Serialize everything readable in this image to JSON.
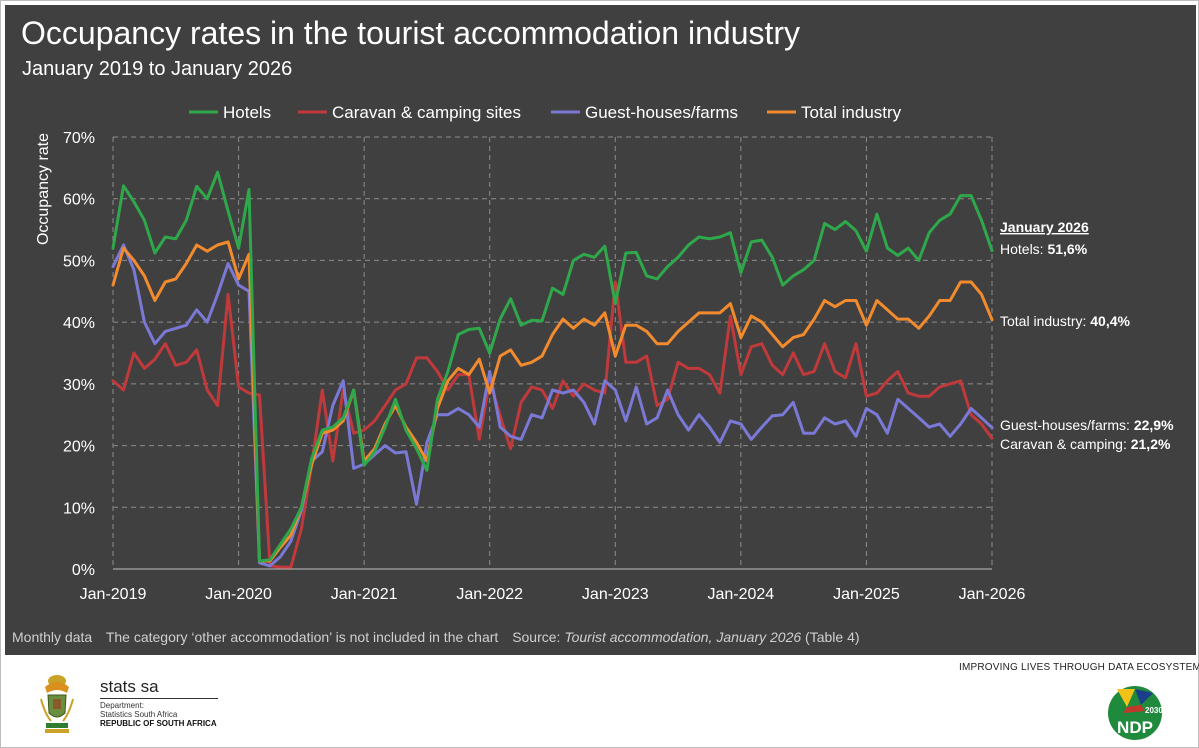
{
  "header": {
    "title": "Occupancy rates in the tourist accommodation industry",
    "subtitle": "January 2019 to January 2026"
  },
  "colors": {
    "background": "#404040",
    "grid": "#8c8c8c",
    "hotels": "#2ea84a",
    "caravan": "#c0393b",
    "guest": "#7b79d6",
    "total": "#f28a2e"
  },
  "chart_data": {
    "type": "line",
    "ylabel": "Occupancy rate",
    "ylim": [
      0,
      70
    ],
    "yticks": [
      "0%",
      "10%",
      "20%",
      "30%",
      "40%",
      "50%",
      "60%",
      "70%"
    ],
    "xtick_labels": [
      "Jan-2019",
      "Jan-2020",
      "Jan-2021",
      "Jan-2022",
      "Jan-2023",
      "Jan-2024",
      "Jan-2025",
      "Jan-2026"
    ],
    "months": 85,
    "legend": [
      "Hotels",
      "Caravan & camping sites",
      "Guest-houses/farms",
      "Total industry"
    ],
    "series": [
      {
        "name": "Hotels",
        "color": "#2ea84a",
        "values": [
          52.0,
          62.1,
          59.5,
          56.5,
          51.2,
          53.8,
          53.5,
          56.5,
          62.0,
          60.0,
          64.3,
          58.0,
          52.0,
          61.5,
          1.3,
          1.5,
          4.0,
          6.5,
          10.0,
          18.0,
          22.5,
          23.0,
          24.5,
          29.0,
          16.8,
          19.0,
          23.0,
          27.5,
          22.5,
          19.5,
          16.0,
          27.5,
          32.0,
          38.0,
          38.8,
          39.0,
          35.0,
          40.5,
          43.8,
          39.5,
          40.3,
          40.2,
          45.5,
          44.5,
          50.0,
          51.0,
          50.5,
          52.3,
          43.0,
          51.2,
          51.3,
          47.5,
          47.0,
          49.0,
          50.5,
          52.5,
          53.8,
          53.5,
          53.8,
          54.5,
          48.0,
          53.0,
          53.3,
          50.5,
          46.0,
          47.5,
          48.5,
          50.0,
          56.0,
          55.0,
          56.3,
          54.8,
          51.5,
          57.5,
          52.0,
          50.8,
          52.0,
          50.0,
          54.5,
          56.5,
          57.5,
          60.5,
          60.5,
          56.5,
          51.6
        ]
      },
      {
        "name": "Caravan & camping sites",
        "color": "#c0393b",
        "values": [
          30.5,
          29.0,
          35.0,
          32.5,
          34.0,
          36.5,
          33.0,
          33.5,
          35.5,
          29.0,
          26.5,
          44.5,
          29.5,
          28.5,
          28.2,
          0.5,
          0.3,
          0.3,
          6.5,
          17.0,
          29.0,
          17.5,
          29.0,
          22.0,
          22.5,
          24.0,
          26.5,
          29.0,
          30.0,
          34.2,
          34.2,
          32.0,
          29.0,
          31.5,
          31.5,
          21.0,
          30.5,
          24.8,
          19.5,
          27.0,
          29.5,
          29.0,
          26.0,
          30.5,
          28.0,
          30.0,
          29.0,
          28.5,
          46.5,
          33.5,
          33.5,
          34.5,
          26.5,
          27.5,
          33.5,
          32.5,
          32.5,
          31.5,
          28.5,
          41.0,
          31.5,
          36.0,
          36.5,
          33.0,
          31.5,
          35.0,
          31.5,
          32.0,
          36.5,
          32.0,
          31.0,
          36.5,
          28.0,
          28.5,
          30.5,
          32.0,
          28.5,
          28.0,
          28.0,
          29.5,
          30.0,
          30.5,
          25.0,
          23.5,
          21.2
        ]
      },
      {
        "name": "Guest-houses/farms",
        "color": "#7b79d6",
        "values": [
          49.0,
          52.5,
          48.5,
          40.0,
          36.5,
          38.5,
          39.0,
          39.5,
          42.0,
          40.0,
          44.5,
          49.5,
          46.0,
          45.0,
          1.0,
          0.5,
          2.0,
          4.5,
          9.5,
          17.5,
          19.0,
          26.5,
          30.5,
          16.3,
          17.0,
          18.5,
          20.0,
          18.8,
          19.0,
          10.5,
          20.5,
          25.0,
          25.0,
          26.0,
          25.0,
          23.0,
          32.0,
          23.0,
          21.5,
          21.0,
          25.0,
          24.5,
          29.0,
          28.5,
          29.0,
          27.0,
          23.5,
          30.5,
          29.0,
          24.0,
          29.5,
          23.5,
          24.5,
          29.0,
          25.0,
          22.5,
          25.0,
          23.0,
          20.5,
          24.0,
          23.5,
          21.0,
          23.0,
          24.8,
          25.0,
          27.0,
          22.0,
          22.0,
          24.5,
          23.5,
          24.0,
          21.5,
          26.0,
          25.0,
          22.0,
          27.5,
          26.0,
          24.5,
          23.0,
          23.5,
          21.5,
          23.5,
          26.0,
          24.5,
          22.9
        ]
      },
      {
        "name": "Total industry",
        "color": "#f28a2e",
        "values": [
          46.0,
          52.0,
          50.0,
          47.5,
          43.5,
          46.5,
          47.0,
          49.5,
          52.5,
          51.5,
          52.5,
          53.0,
          47.0,
          51.0,
          1.3,
          1.3,
          3.5,
          5.5,
          10.0,
          17.0,
          22.0,
          22.5,
          24.0,
          29.0,
          17.5,
          19.5,
          23.5,
          26.5,
          23.0,
          20.5,
          17.5,
          26.0,
          30.5,
          32.5,
          31.5,
          34.0,
          28.5,
          34.5,
          35.5,
          33.0,
          33.5,
          34.5,
          38.0,
          40.5,
          39.0,
          40.5,
          39.5,
          41.5,
          34.5,
          39.5,
          39.5,
          38.5,
          36.5,
          36.5,
          38.5,
          40.0,
          41.5,
          41.5,
          41.5,
          43.0,
          37.5,
          41.0,
          40.0,
          38.0,
          36.0,
          37.5,
          38.0,
          40.5,
          43.5,
          42.5,
          43.5,
          43.5,
          39.5,
          43.5,
          42.0,
          40.5,
          40.5,
          39.0,
          41.0,
          43.5,
          43.5,
          46.5,
          46.5,
          44.5,
          40.4
        ]
      }
    ],
    "annotations": {
      "heading": "January 2026",
      "hotels_label": "Hotels: ",
      "hotels_value": "51,6%",
      "total_label": "Total industry: ",
      "total_value": "40,4%",
      "guest_label": "Guest-houses/farms: ",
      "guest_value": "22,9%",
      "caravan_label": "Caravan & camping: ",
      "caravan_value": "21,2%"
    }
  },
  "footer": {
    "monthly": "Monthly data",
    "note": "The category ‘other accommodation’ is not included in the chart",
    "source_prefix": "Source: ",
    "source_title": "Tourist accommodation, January 2026",
    "source_suffix": " (Table 4)"
  },
  "branding": {
    "slogan": "IMPROVING LIVES THROUGH DATA ECOSYSTEMS",
    "stats_name": "stats sa",
    "dept_line1": "Department:",
    "dept_line2": "Statistics South Africa",
    "dept_line3": "REPUBLIC OF SOUTH AFRICA",
    "ndp_text": "NDP",
    "ndp_year": "2030"
  }
}
